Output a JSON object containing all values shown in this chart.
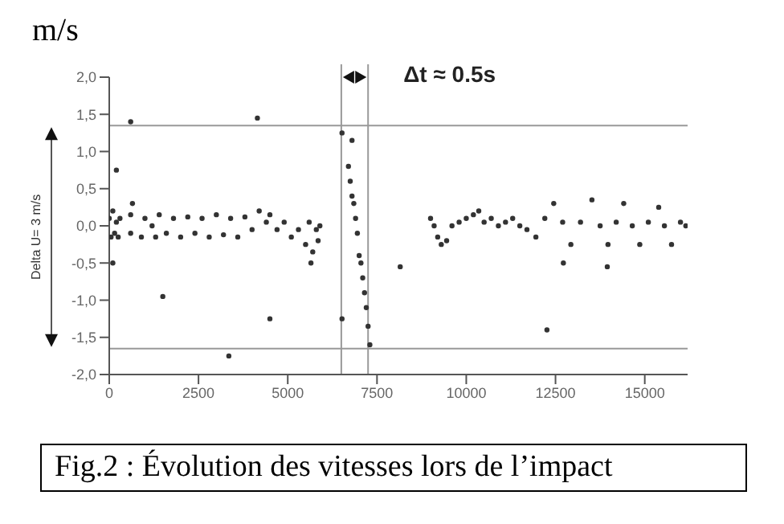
{
  "chart_data": {
    "type": "scatter",
    "title": "Fig.2 : Évolution des vitesses lors de l’impact",
    "ylabel": "m/s",
    "marker": "circle",
    "annotations": [
      "Delta U= 3 m/s",
      "Δt ≈ 0.5s"
    ],
    "x": [
      0,
      50,
      100,
      150,
      200,
      250,
      300,
      600,
      600,
      650,
      900,
      1000,
      1200,
      1300,
      1400,
      1600,
      1800,
      2000,
      2200,
      2400,
      2600,
      2800,
      3000,
      3200,
      3400,
      3600,
      3800,
      4000,
      4200,
      4400,
      4500,
      4700,
      4900,
      5100,
      5300,
      5500,
      5600,
      5650,
      5700,
      5800,
      5850,
      5900,
      200,
      100,
      600,
      4150,
      1500,
      4500,
      3350,
      8150,
      6520,
      6520,
      6800,
      6700,
      6750,
      6800,
      6850,
      6900,
      6950,
      7000,
      7050,
      7100,
      7150,
      7200,
      7250,
      7300,
      9000,
      9100,
      9200,
      9300,
      9450,
      9600,
      9800,
      10000,
      10200,
      10350,
      10500,
      10700,
      10900,
      11100,
      11300,
      11500,
      11700,
      11950,
      12200,
      12450,
      12700,
      12930,
      13200,
      13520,
      13750,
      13970,
      14200,
      14410,
      14650,
      14860,
      15100,
      15390,
      15550,
      15750,
      16000,
      16150,
      12260,
      12720,
      13950
    ],
    "series": [
      {
        "color": "#333333",
        "values": [
          0.1,
          -0.15,
          0.2,
          -0.1,
          0.05,
          -0.15,
          0.1,
          0.15,
          -0.1,
          0.3,
          -0.15,
          0.1,
          0.0,
          -0.15,
          0.15,
          -0.1,
          0.1,
          -0.15,
          0.12,
          -0.1,
          0.1,
          -0.15,
          0.15,
          -0.12,
          0.1,
          -0.15,
          0.12,
          -0.05,
          0.2,
          0.05,
          0.15,
          -0.05,
          0.05,
          -0.15,
          -0.05,
          -0.25,
          0.05,
          -0.5,
          -0.35,
          -0.05,
          -0.2,
          0.0,
          0.75,
          -0.5,
          1.4,
          1.45,
          -0.95,
          -1.25,
          -1.75,
          -0.55,
          1.25,
          -1.25,
          1.15,
          0.8,
          0.6,
          0.4,
          0.3,
          0.1,
          -0.1,
          -0.4,
          -0.5,
          -0.7,
          -0.9,
          -1.1,
          -1.35,
          -1.6,
          0.1,
          0.0,
          -0.15,
          -0.25,
          -0.2,
          0.0,
          0.05,
          0.1,
          0.15,
          0.2,
          0.05,
          0.1,
          0.0,
          0.05,
          0.1,
          0.0,
          -0.05,
          -0.15,
          0.1,
          0.3,
          0.05,
          -0.25,
          0.05,
          0.35,
          0.0,
          -0.25,
          0.05,
          0.3,
          0.0,
          -0.25,
          0.05,
          0.25,
          0.0,
          -0.25,
          0.05,
          0.0,
          -1.4,
          -0.5,
          -0.55
        ]
      }
    ],
    "xlim": [
      0,
      16200
    ],
    "xticks": [
      0,
      2500,
      5000,
      7500,
      10000,
      12500,
      15000
    ],
    "ylim": [
      -2,
      2
    ],
    "yticks": [
      {
        "value": -2,
        "label": "-2,0"
      },
      {
        "value": -1.5,
        "label": "-1,5"
      },
      {
        "value": -1,
        "label": "-1,0"
      },
      {
        "value": -0.5,
        "label": "-0,5"
      },
      {
        "value": 0,
        "label": "0,0"
      },
      {
        "value": 0.5,
        "label": "0,5"
      },
      {
        "value": 1,
        "label": "1,0"
      },
      {
        "value": 1.5,
        "label": "1,5"
      },
      {
        "value": 2,
        "label": "2,0"
      }
    ],
    "ref_lines": [
      {
        "axis": "y",
        "value": 1.35,
        "color": "#999999"
      },
      {
        "axis": "y",
        "value": -1.65,
        "color": "#999999"
      },
      {
        "axis": "x",
        "value": 6500,
        "color": "#999999"
      },
      {
        "axis": "x",
        "value": 7250,
        "color": "#999999"
      }
    ]
  }
}
